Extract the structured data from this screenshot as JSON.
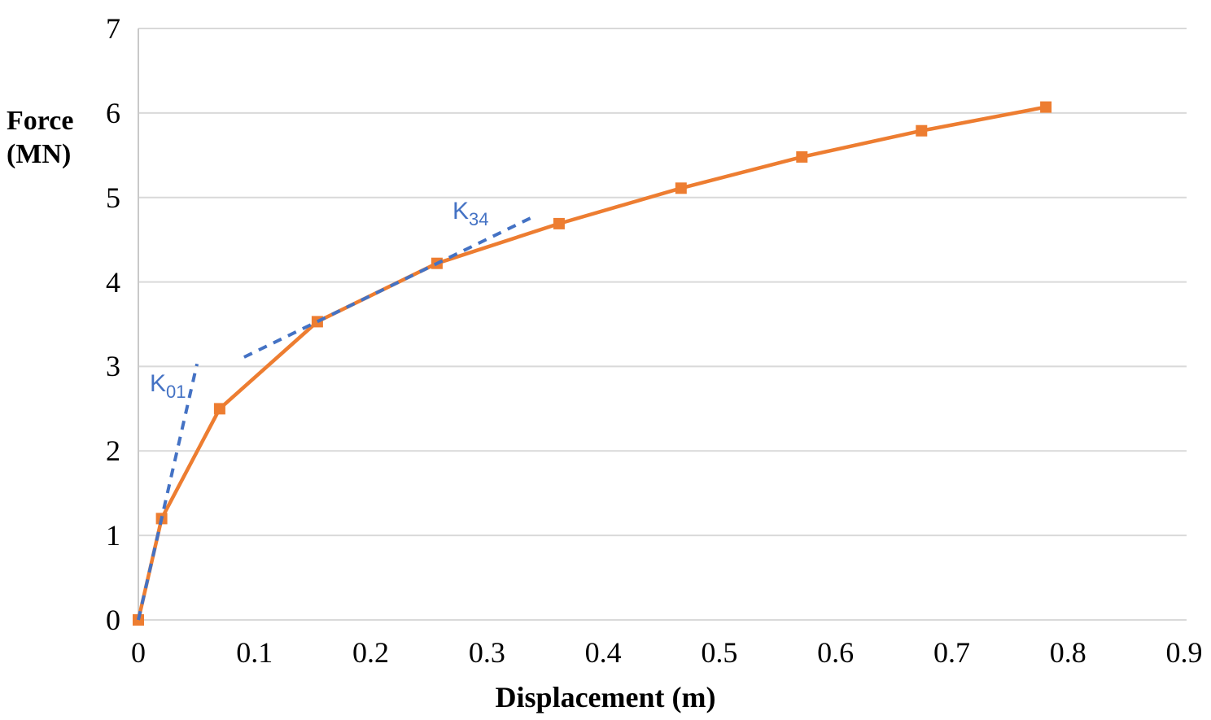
{
  "chart_data": {
    "type": "line",
    "title": "",
    "xlabel": "Displacement (m)",
    "ylabel": "Force (MN)",
    "ylabel_lines": [
      "Force",
      "(MN)"
    ],
    "xlim": [
      0,
      0.9
    ],
    "ylim": [
      0,
      7
    ],
    "grid": "horizontal-only",
    "legend": "none",
    "x_ticks": [
      {
        "v": 0,
        "label": "0"
      },
      {
        "v": 0.1,
        "label": "0.1"
      },
      {
        "v": 0.2,
        "label": "0.2"
      },
      {
        "v": 0.3,
        "label": "0.3"
      },
      {
        "v": 0.4,
        "label": "0.4"
      },
      {
        "v": 0.5,
        "label": "0.5"
      },
      {
        "v": 0.6,
        "label": "0.6"
      },
      {
        "v": 0.7,
        "label": "0.7"
      },
      {
        "v": 0.8,
        "label": "0.8"
      },
      {
        "v": 0.9,
        "label": "0.9"
      }
    ],
    "y_ticks": [
      {
        "v": 0,
        "label": "0"
      },
      {
        "v": 1,
        "label": "1"
      },
      {
        "v": 2,
        "label": "2"
      },
      {
        "v": 3,
        "label": "3"
      },
      {
        "v": 4,
        "label": "4"
      },
      {
        "v": 5,
        "label": "5"
      },
      {
        "v": 6,
        "label": "6"
      },
      {
        "v": 7,
        "label": "7"
      }
    ],
    "series": [
      {
        "name": "force-displacement-curve",
        "marker": "square",
        "color": "#ED7D31",
        "line_width": 4.5,
        "points": [
          [
            0,
            0
          ],
          [
            0.02,
            1.2
          ],
          [
            0.07,
            2.5
          ],
          [
            0.154,
            3.53
          ],
          [
            0.257,
            4.22
          ],
          [
            0.362,
            4.69
          ],
          [
            0.467,
            5.11
          ],
          [
            0.571,
            5.48
          ],
          [
            0.674,
            5.79
          ],
          [
            0.781,
            6.07
          ]
        ]
      }
    ],
    "annotations": [
      {
        "name": "K01-initial-stiffness-line",
        "label_main": "K",
        "label_sub": "01",
        "style": "dashed",
        "color": "#4472C4",
        "from": [
          0,
          0
        ],
        "to": [
          0.0505,
          3.03
        ]
      },
      {
        "name": "K34-secant-stiffness-line",
        "label_main": "K",
        "label_sub": "34",
        "style": "dashed",
        "color": "#4472C4",
        "from": [
          0.091,
          3.11
        ],
        "to": [
          0.341,
          4.78
        ]
      }
    ],
    "colors": {
      "series_orange": "#ED7D31",
      "annotation_blue": "#4472C4",
      "gridline": "#D9D9D9",
      "axis_line": "#C9C9C9",
      "text": "#000000",
      "background": "#FFFFFF"
    }
  }
}
